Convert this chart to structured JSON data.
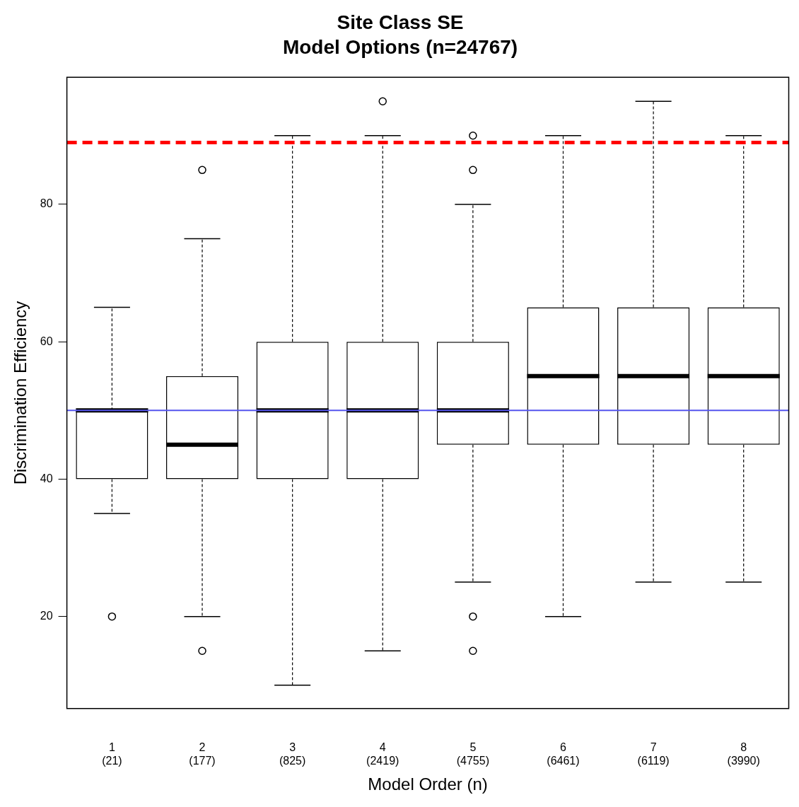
{
  "chart_data": {
    "type": "box",
    "title": "Site Class SE",
    "subtitle": "Model Options (n=24767)",
    "xlabel": "Model Order (n)",
    "ylabel": "Discrimination Efficiency",
    "categories": [
      "1\n(21)",
      "2\n(177)",
      "3\n(825)",
      "4\n(2419)",
      "5\n(4755)",
      "6\n(6461)",
      "7\n(6119)",
      "8\n(3990)"
    ],
    "boxes": [
      {
        "low": 35,
        "q1": 40,
        "median": 50,
        "q3": 50,
        "high": 65,
        "outliers": [
          20
        ]
      },
      {
        "low": 20,
        "q1": 40,
        "median": 45,
        "q3": 55,
        "high": 75,
        "outliers": [
          15,
          85
        ]
      },
      {
        "low": 10,
        "q1": 40,
        "median": 50,
        "q3": 60,
        "high": 90
      },
      {
        "low": 15,
        "q1": 40,
        "median": 50,
        "q3": 60,
        "high": 90,
        "outliers": [
          95
        ]
      },
      {
        "low": 25,
        "q1": 45,
        "median": 50,
        "q3": 60,
        "high": 80,
        "outliers": [
          15,
          20,
          85,
          90
        ]
      },
      {
        "low": 20,
        "q1": 45,
        "median": 55,
        "q3": 65,
        "high": 90
      },
      {
        "low": 25,
        "q1": 45,
        "median": 55,
        "q3": 65,
        "high": 95
      },
      {
        "low": 25,
        "q1": 45,
        "median": 55,
        "q3": 65,
        "high": 90
      }
    ],
    "color": "#000000",
    "ylim": [
      6.6,
      98.5
    ],
    "yticks": [
      20,
      40,
      60,
      80
    ],
    "grid": false,
    "legend": false,
    "ref_lines": [
      {
        "axis": "y",
        "value": 89,
        "color": "#ff0000",
        "line_style": "dashed"
      },
      {
        "axis": "y",
        "value": 50,
        "color": "#5555ee",
        "line_style": "solid"
      }
    ]
  }
}
